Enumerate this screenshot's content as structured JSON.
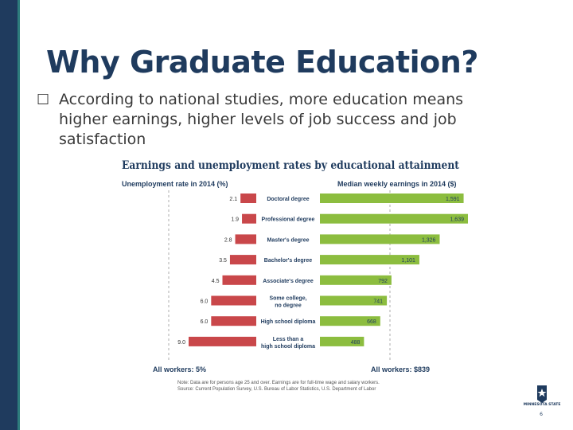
{
  "slide": {
    "title": "Why Graduate Education?",
    "bullet_mark": "☐",
    "bullet_text": "According to national studies, more education means higher earnings, higher levels of job success and job satisfaction",
    "page_number": "6",
    "logo_text": "MINNESOTA STATE",
    "colors": {
      "sidebar": "#1f3b5e",
      "sidebar_accent": "#2e7d7d",
      "title": "#1f3b5e"
    }
  },
  "chart_data": {
    "type": "bar",
    "title": "Earnings and unemployment rates by educational attainment",
    "left_header": "Unemployment rate in 2014 (%)",
    "right_header": "Median weekly earnings in 2014 ($)",
    "categories": [
      "Doctoral degree",
      "Professional degree",
      "Master's degree",
      "Bachelor's degree",
      "Associate's degree",
      "Some college, no degree",
      "High school diploma",
      "Less than a high school diploma"
    ],
    "series": [
      {
        "name": "Unemployment rate in 2014 (%)",
        "values": [
          2.1,
          1.9,
          2.8,
          3.5,
          4.5,
          6.0,
          6.0,
          9.0
        ],
        "labels": [
          "2.1",
          "1.9",
          "2.8",
          "3.5",
          "4.5",
          "6.0",
          "6.0",
          "9.0"
        ],
        "color": "#c9474a"
      },
      {
        "name": "Median weekly earnings in 2014 ($)",
        "values": [
          1591,
          1639,
          1326,
          1101,
          792,
          741,
          668,
          488
        ],
        "labels": [
          "1,591",
          "1,639",
          "1,326",
          "1,101",
          "792",
          "741",
          "668",
          "488"
        ],
        "color": "#8cbd3f"
      }
    ],
    "left_summary": "All workers: 5%",
    "right_summary": "All workers: $839",
    "note_line1": "Note: Data are for persons age 25 and over. Earnings are for full-time wage and salary workers.",
    "note_line2": "Source: Current Population Survey, U.S. Bureau of Labor Statistics, U.S. Department of Labor"
  }
}
